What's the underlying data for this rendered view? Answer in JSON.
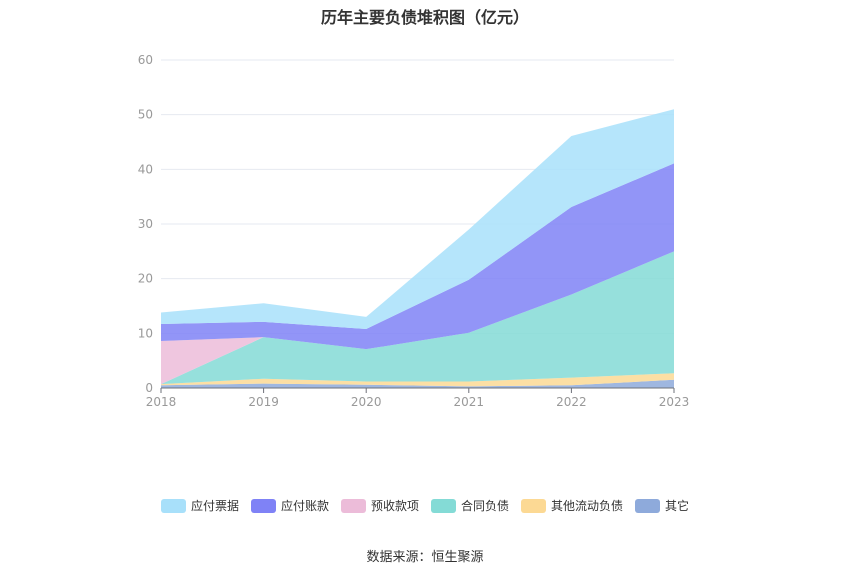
{
  "chart_data": {
    "type": "area",
    "title": "历年主要负债堆积图（亿元）",
    "categories": [
      "2018",
      "2019",
      "2020",
      "2021",
      "2022",
      "2023"
    ],
    "ylim": [
      0,
      60
    ],
    "yticks": [
      0,
      10,
      20,
      30,
      40,
      50,
      60
    ],
    "stacked": true,
    "grid": true,
    "legend_position": "bottom",
    "series": [
      {
        "name": "其它",
        "color": "#8eaadb",
        "values": [
          0.5,
          0.8,
          0.6,
          0.3,
          0.5,
          1.5
        ]
      },
      {
        "name": "其他流动负债",
        "color": "#fcd994",
        "values": [
          0.2,
          0.9,
          0.6,
          0.9,
          1.4,
          1.2
        ]
      },
      {
        "name": "合同负债",
        "color": "#84dbd6",
        "values": [
          0.0,
          7.6,
          5.9,
          8.9,
          15.2,
          22.3
        ]
      },
      {
        "name": "预收款项",
        "color": "#ecbcd9",
        "values": [
          7.9,
          0.0,
          0.0,
          0.0,
          0.0,
          0.0
        ]
      },
      {
        "name": "应付账款",
        "color": "#7f82f6",
        "values": [
          3.1,
          2.8,
          3.7,
          9.7,
          16.0,
          16.1
        ]
      },
      {
        "name": "应付票据",
        "color": "#a8e0fa",
        "values": [
          2.1,
          3.4,
          2.2,
          9.2,
          13.0,
          9.9
        ]
      }
    ]
  },
  "legend": [
    {
      "label": "应付票据",
      "color": "#a8e0fa"
    },
    {
      "label": "应付账款",
      "color": "#7f82f6"
    },
    {
      "label": "预收款项",
      "color": "#ecbcd9"
    },
    {
      "label": "合同负债",
      "color": "#84dbd6"
    },
    {
      "label": "其他流动负债",
      "color": "#fcd994"
    },
    {
      "label": "其它",
      "color": "#8eaadb"
    }
  ],
  "source": "数据来源：恒生聚源"
}
